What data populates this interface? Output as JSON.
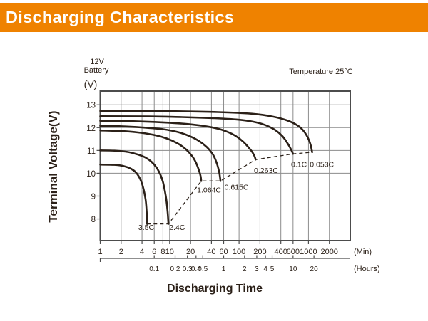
{
  "header": {
    "title": "Discharging Characteristics",
    "bg_color": "#EF8200",
    "text_color": "#FFFFFF"
  },
  "annotations": {
    "battery_line1": "12V",
    "battery_line2": "Battery",
    "temperature": "Temperature 25°C",
    "y_unit": "(V)",
    "min_unit": "(Min)",
    "hours_unit": "(Hours)"
  },
  "chart_data": {
    "type": "line",
    "title": "Discharging Characteristics",
    "xlabel": "Discharging Time",
    "ylabel": "Terminal Voltage(V)",
    "x_scale": "log",
    "x_domain_minutes": [
      1,
      4000
    ],
    "y_domain": [
      7.05,
      13.6
    ],
    "grid": true,
    "y_ticks": [
      8,
      9,
      10,
      11,
      12,
      13
    ],
    "x_ticks_minutes": [
      1,
      2,
      4,
      6,
      8,
      10,
      20,
      40,
      60,
      100,
      200,
      400,
      600,
      1000,
      2000
    ],
    "x_tick_minutes_labels": [
      "1",
      "2",
      "4",
      "6",
      "8",
      "10",
      "20",
      "40",
      "60",
      "100",
      "200",
      "400",
      "600",
      "1000",
      "2000"
    ],
    "x_ticks_hours": [
      0.1,
      0.2,
      0.3,
      0.4,
      0.5,
      1,
      2,
      3,
      4,
      5,
      10,
      20
    ],
    "x_tick_hours_labels": [
      "0.1",
      "0.2",
      "0.3",
      "0.4",
      "0.5",
      "1",
      "2",
      "3",
      "4",
      "5",
      "10",
      "20"
    ],
    "series": [
      {
        "name": "3.5C",
        "label_pos": [
          4.6,
          7.65
        ],
        "points": [
          [
            1,
            10.38
          ],
          [
            1.6,
            10.37
          ],
          [
            2.2,
            10.31
          ],
          [
            2.8,
            10.19
          ],
          [
            3.3,
            10.02
          ],
          [
            3.8,
            9.72
          ],
          [
            4.2,
            9.32
          ],
          [
            4.5,
            8.85
          ],
          [
            4.65,
            8.4
          ],
          [
            4.72,
            8.0
          ],
          [
            4.75,
            7.78
          ]
        ]
      },
      {
        "name": "2.4C",
        "label_pos": [
          12.8,
          7.65
        ],
        "points": [
          [
            1,
            11.0
          ],
          [
            1.6,
            10.99
          ],
          [
            2.3,
            10.95
          ],
          [
            3,
            10.88
          ],
          [
            4,
            10.76
          ],
          [
            5,
            10.6
          ],
          [
            6,
            10.38
          ],
          [
            7,
            10.08
          ],
          [
            8,
            9.62
          ],
          [
            8.8,
            9.0
          ],
          [
            9.3,
            8.4
          ],
          [
            9.6,
            7.78
          ]
        ]
      },
      {
        "name": "1.064C",
        "label_pos": [
          37,
          9.28
        ],
        "points": [
          [
            1,
            11.88
          ],
          [
            2,
            11.85
          ],
          [
            3.5,
            11.79
          ],
          [
            6,
            11.68
          ],
          [
            9,
            11.53
          ],
          [
            13,
            11.31
          ],
          [
            17,
            11.06
          ],
          [
            21,
            10.76
          ],
          [
            24,
            10.46
          ],
          [
            26.5,
            10.12
          ],
          [
            28,
            9.86
          ],
          [
            28.5,
            9.66
          ]
        ]
      },
      {
        "name": "0.615C",
        "label_pos": [
          92,
          9.4
        ],
        "points": [
          [
            1,
            12.08
          ],
          [
            2,
            12.06
          ],
          [
            4,
            12.01
          ],
          [
            8,
            11.93
          ],
          [
            13,
            11.81
          ],
          [
            19,
            11.64
          ],
          [
            26,
            11.43
          ],
          [
            34,
            11.16
          ],
          [
            42,
            10.82
          ],
          [
            48,
            10.42
          ],
          [
            52,
            10.02
          ],
          [
            54,
            9.66
          ]
        ]
      },
      {
        "name": "0.263C",
        "label_pos": [
          245,
          10.14
        ],
        "points": [
          [
            1,
            12.3
          ],
          [
            3,
            12.28
          ],
          [
            8,
            12.23
          ],
          [
            16,
            12.17
          ],
          [
            30,
            12.08
          ],
          [
            50,
            11.95
          ],
          [
            70,
            11.8
          ],
          [
            90,
            11.63
          ],
          [
            115,
            11.38
          ],
          [
            140,
            11.1
          ],
          [
            158,
            10.89
          ],
          [
            168,
            10.73
          ],
          [
            173,
            10.6
          ]
        ]
      },
      {
        "name": "0.1C",
        "label_pos": [
          730,
          10.4
        ],
        "points": [
          [
            1,
            12.5
          ],
          [
            5,
            12.49
          ],
          [
            15,
            12.46
          ],
          [
            40,
            12.42
          ],
          [
            90,
            12.36
          ],
          [
            160,
            12.26
          ],
          [
            240,
            12.11
          ],
          [
            330,
            11.9
          ],
          [
            420,
            11.63
          ],
          [
            500,
            11.31
          ],
          [
            560,
            11.05
          ],
          [
            600,
            10.85
          ]
        ]
      },
      {
        "name": "0.053C",
        "label_pos": [
          1560,
          10.4
        ],
        "points": [
          [
            1,
            12.73
          ],
          [
            10,
            12.72
          ],
          [
            50,
            12.68
          ],
          [
            150,
            12.61
          ],
          [
            300,
            12.49
          ],
          [
            500,
            12.31
          ],
          [
            700,
            12.09
          ],
          [
            850,
            11.86
          ],
          [
            980,
            11.56
          ],
          [
            1070,
            11.26
          ],
          [
            1130,
            10.92
          ]
        ]
      }
    ],
    "cutoff_dashed_line": [
      [
        4.75,
        7.78
      ],
      [
        9.6,
        7.78
      ],
      [
        28.5,
        9.66
      ],
      [
        54,
        9.66
      ],
      [
        173,
        10.6
      ],
      [
        600,
        10.85
      ],
      [
        1130,
        10.92
      ]
    ],
    "legend_position": "none"
  },
  "colors": {
    "curve": "#2B2018",
    "grid": "#8C8C8C",
    "border": "#4C4C4C",
    "text": "#2B2018",
    "page_bg": "#FFFFFF"
  }
}
